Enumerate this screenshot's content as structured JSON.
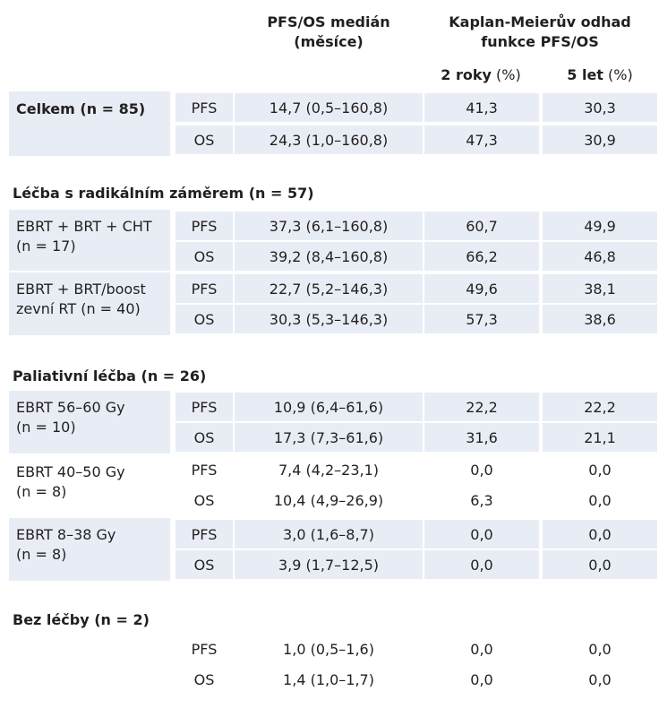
{
  "header": {
    "col_median_line1": "PFS/OS medián",
    "col_median_line2": "(měsíce)",
    "col_km_line1": "Kaplan-Meierův odhad",
    "col_km_line2": "funkce PFS/OS",
    "sub_2y_bold": "2 roky",
    "sub_2y_unit": "(%)",
    "sub_5y_bold": "5 let",
    "sub_5y_unit": "(%)"
  },
  "sections": {
    "radical": "Léčba s radikálním záměrem (n = 57)",
    "palliative": "Paliativní léčba (n = 26)",
    "none": "Bez léčby (n = 2)"
  },
  "groups": {
    "total": {
      "label": "Celkem (n = 85)"
    },
    "g1": {
      "line1": "EBRT + BRT + CHT",
      "line2": "(n = 17)"
    },
    "g2": {
      "line1": "EBRT + BRT/boost",
      "line2": "zevní RT (n = 40)"
    },
    "g3": {
      "line1": "EBRT 56–60 Gy",
      "line2": "(n = 10)"
    },
    "g4": {
      "line1": "EBRT 40–50 Gy",
      "line2": "(n = 8)"
    },
    "g5": {
      "line1": "EBRT 8–38 Gy",
      "line2": "(n = 8)"
    }
  },
  "rows": [
    {
      "type": "PFS",
      "median": "14,7 (0,5–160,8)",
      "y2": "41,3",
      "y5": "30,3"
    },
    {
      "type": "OS",
      "median": "24,3 (1,0–160,8)",
      "y2": "47,3",
      "y5": "30,9"
    },
    {
      "type": "PFS",
      "median": "37,3 (6,1–160,8)",
      "y2": "60,7",
      "y5": "49,9"
    },
    {
      "type": "OS",
      "median": "39,2 (8,4–160,8)",
      "y2": "66,2",
      "y5": "46,8"
    },
    {
      "type": "PFS",
      "median": "22,7 (5,2–146,3)",
      "y2": "49,6",
      "y5": "38,1"
    },
    {
      "type": "OS",
      "median": "30,3 (5,3–146,3)",
      "y2": "57,3",
      "y5": "38,6"
    },
    {
      "type": "PFS",
      "median": "10,9 (6,4–61,6)",
      "y2": "22,2",
      "y5": "22,2"
    },
    {
      "type": "OS",
      "median": "17,3 (7,3–61,6)",
      "y2": "31,6",
      "y5": "21,1"
    },
    {
      "type": "PFS",
      "median": "7,4 (4,2–23,1)",
      "y2": "0,0",
      "y5": "0,0"
    },
    {
      "type": "OS",
      "median": "10,4 (4,9–26,9)",
      "y2": "6,3",
      "y5": "0,0"
    },
    {
      "type": "PFS",
      "median": "3,0 (1,6–8,7)",
      "y2": "0,0",
      "y5": "0,0"
    },
    {
      "type": "OS",
      "median": "3,9 (1,7–12,5)",
      "y2": "0,0",
      "y5": "0,0"
    },
    {
      "type": "PFS",
      "median": "1,0 (0,5–1,6)",
      "y2": "0,0",
      "y5": "0,0"
    },
    {
      "type": "OS",
      "median": "1,4 (1,0–1,7)",
      "y2": "0,0",
      "y5": "0,0"
    }
  ]
}
